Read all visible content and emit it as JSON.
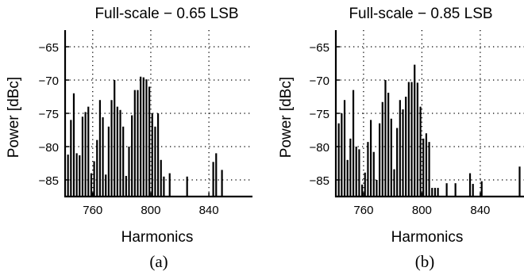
{
  "chart_data": [
    {
      "type": "bar",
      "title": "Full-scale − 0.65 LSB",
      "xlabel": "Harmonics",
      "ylabel": "Power [dBc]",
      "caption": "(a)",
      "xlim": [
        741,
        870
      ],
      "ylim": [
        -87.5,
        -62.5
      ],
      "xticks": [
        760,
        800,
        840
      ],
      "yticks": [
        -65,
        -70,
        -75,
        -80,
        -85
      ],
      "xtick_labels": [
        "760",
        "800",
        "840"
      ],
      "ytick_labels": [
        "−65",
        "−70",
        "−75",
        "−80",
        "−85"
      ],
      "grid": "dotted at ticks",
      "x": [
        743,
        745,
        747,
        749,
        751,
        753,
        755,
        757,
        759,
        761,
        763,
        765,
        767,
        769,
        771,
        773,
        775,
        777,
        779,
        781,
        783,
        785,
        787,
        789,
        791,
        793,
        795,
        797,
        799,
        801,
        803,
        805,
        807,
        809,
        813,
        825,
        843,
        845,
        849
      ],
      "values": [
        -81.2,
        -76.0,
        -72.0,
        -81.0,
        -81.3,
        -75.5,
        -74.8,
        -74.0,
        -84.0,
        -82.2,
        -79.0,
        -73.0,
        -75.6,
        -84.2,
        -77.0,
        -73.0,
        -70.0,
        -74.0,
        -74.5,
        -77.0,
        -84.4,
        -80.0,
        -75.3,
        -71.5,
        -71.5,
        -69.5,
        -69.6,
        -69.9,
        -71.0,
        -75.0,
        -77.0,
        -75.0,
        -82.0,
        -84.5,
        -84.0,
        -84.5,
        -82.3,
        -81.0,
        -83.5
      ]
    },
    {
      "type": "bar",
      "title": "Full-scale − 0.85 LSB",
      "xlabel": "Harmonics",
      "ylabel": "Power [dBc]",
      "caption": "(b)",
      "xlim": [
        741,
        870
      ],
      "ylim": [
        -87.5,
        -62.5
      ],
      "xticks": [
        760,
        800,
        840
      ],
      "yticks": [
        -65,
        -70,
        -75,
        -80,
        -85
      ],
      "xtick_labels": [
        "760",
        "800",
        "840"
      ],
      "ytick_labels": [
        "−65",
        "−70",
        "−75",
        "−80",
        "−85"
      ],
      "grid": "dotted at ticks",
      "x": [
        743,
        745,
        747,
        749,
        751,
        753,
        755,
        757,
        759,
        761,
        763,
        765,
        767,
        769,
        771,
        773,
        775,
        777,
        779,
        781,
        783,
        785,
        787,
        789,
        791,
        793,
        795,
        797,
        799,
        801,
        803,
        805,
        807,
        809,
        811,
        817,
        823,
        833,
        835,
        841,
        867
      ],
      "values": [
        -76.5,
        -75.0,
        -73.0,
        -82.0,
        -78.8,
        -71.5,
        -80.0,
        -80.4,
        -85.7,
        -83.9,
        -79.3,
        -76.0,
        -80.8,
        -85.0,
        -76.5,
        -73.3,
        -70.0,
        -71.9,
        -75.8,
        -83.4,
        -77.2,
        -73.0,
        -74.4,
        -72.5,
        -70.3,
        -70.3,
        -67.7,
        -70.4,
        -74.0,
        -78.8,
        -78.0,
        -79.3,
        -86.2,
        -86.2,
        -86.2,
        -85.5,
        -85.5,
        -84.0,
        -85.6,
        -85.2,
        -83.0
      ]
    }
  ]
}
